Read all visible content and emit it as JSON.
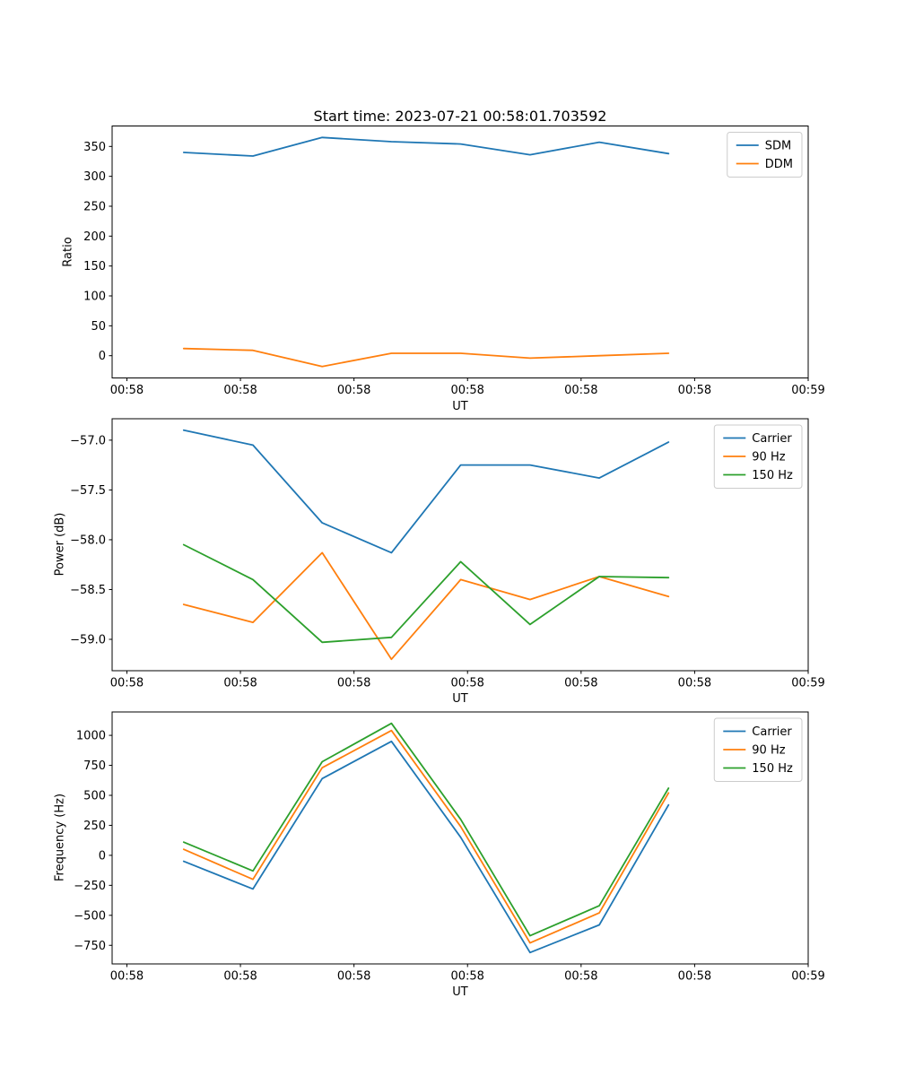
{
  "figure": {
    "background": "#ffffff",
    "text_color": "#000000",
    "spine_color": "#000000",
    "legend_border_color": "#cccccc"
  },
  "chart_data": [
    {
      "type": "line",
      "title": "Start time: 2023-07-21 00:58:01.703592",
      "xlabel": "UT",
      "ylabel": "Ratio",
      "grid": false,
      "legend_position": "upper right",
      "xlim": [
        -1.3,
        60.0
      ],
      "ylim": [
        -37.2,
        384.2
      ],
      "x": [
        5.0,
        11.1,
        17.2,
        23.3,
        29.4,
        35.5,
        41.6,
        47.7
      ],
      "x_ticks": [
        {
          "value": 0,
          "label": "00:58"
        },
        {
          "value": 10,
          "label": "00:58"
        },
        {
          "value": 20,
          "label": "00:58"
        },
        {
          "value": 30,
          "label": "00:58"
        },
        {
          "value": 40,
          "label": "00:58"
        },
        {
          "value": 50,
          "label": "00:58"
        },
        {
          "value": 60,
          "label": "00:59"
        }
      ],
      "y_ticks": [
        {
          "value": 0,
          "label": "0"
        },
        {
          "value": 50,
          "label": "50"
        },
        {
          "value": 100,
          "label": "100"
        },
        {
          "value": 150,
          "label": "150"
        },
        {
          "value": 200,
          "label": "200"
        },
        {
          "value": 250,
          "label": "250"
        },
        {
          "value": 300,
          "label": "300"
        },
        {
          "value": 350,
          "label": "350"
        }
      ],
      "series": [
        {
          "name": "SDM",
          "color": "#1f77b4",
          "values": [
            340,
            334,
            365,
            358,
            354,
            336,
            357,
            338
          ]
        },
        {
          "name": "DDM",
          "color": "#ff7f0e",
          "values": [
            12,
            9,
            -18,
            4,
            4,
            -4,
            0,
            4
          ]
        }
      ]
    },
    {
      "type": "line",
      "title": "",
      "xlabel": "UT",
      "ylabel": "Power (dB)",
      "grid": false,
      "legend_position": "upper right",
      "xlim": [
        -1.3,
        60.0
      ],
      "ylim": [
        -59.315,
        -56.785
      ],
      "x": [
        5.0,
        11.1,
        17.2,
        23.3,
        29.4,
        35.5,
        41.6,
        47.7
      ],
      "x_ticks": [
        {
          "value": 0,
          "label": "00:58"
        },
        {
          "value": 10,
          "label": "00:58"
        },
        {
          "value": 20,
          "label": "00:58"
        },
        {
          "value": 30,
          "label": "00:58"
        },
        {
          "value": 40,
          "label": "00:58"
        },
        {
          "value": 50,
          "label": "00:58"
        },
        {
          "value": 60,
          "label": "00:59"
        }
      ],
      "y_ticks": [
        {
          "value": -57.0,
          "label": "−57.0"
        },
        {
          "value": -57.5,
          "label": "−57.5"
        },
        {
          "value": -58.0,
          "label": "−58.0"
        },
        {
          "value": -58.5,
          "label": "−58.5"
        },
        {
          "value": -59.0,
          "label": "−59.0"
        }
      ],
      "series": [
        {
          "name": "Carrier",
          "color": "#1f77b4",
          "values": [
            -56.9,
            -57.05,
            -57.83,
            -58.13,
            -57.25,
            -57.25,
            -57.38,
            -57.02
          ]
        },
        {
          "name": "90 Hz",
          "color": "#ff7f0e",
          "values": [
            -58.65,
            -58.83,
            -58.13,
            -59.2,
            -58.4,
            -58.6,
            -58.37,
            -58.57
          ]
        },
        {
          "name": "150 Hz",
          "color": "#2ca02c",
          "values": [
            -58.05,
            -58.4,
            -59.03,
            -58.98,
            -58.22,
            -58.85,
            -58.37,
            -58.38
          ]
        }
      ]
    },
    {
      "type": "line",
      "title": "",
      "xlabel": "UT",
      "ylabel": "Frequency (Hz)",
      "grid": false,
      "legend_position": "upper right",
      "xlim": [
        -1.3,
        60.0
      ],
      "ylim": [
        -905,
        1195
      ],
      "x": [
        5.0,
        11.1,
        17.2,
        23.3,
        29.4,
        35.5,
        41.6,
        47.7
      ],
      "x_ticks": [
        {
          "value": 0,
          "label": "00:58"
        },
        {
          "value": 10,
          "label": "00:58"
        },
        {
          "value": 20,
          "label": "00:58"
        },
        {
          "value": 30,
          "label": "00:58"
        },
        {
          "value": 40,
          "label": "00:58"
        },
        {
          "value": 50,
          "label": "00:58"
        },
        {
          "value": 60,
          "label": "00:59"
        }
      ],
      "y_ticks": [
        {
          "value": -750,
          "label": "−750"
        },
        {
          "value": -500,
          "label": "−500"
        },
        {
          "value": -250,
          "label": "−250"
        },
        {
          "value": 0,
          "label": "0"
        },
        {
          "value": 250,
          "label": "250"
        },
        {
          "value": 500,
          "label": "500"
        },
        {
          "value": 750,
          "label": "750"
        },
        {
          "value": 1000,
          "label": "1000"
        }
      ],
      "series": [
        {
          "name": "Carrier",
          "color": "#1f77b4",
          "values": [
            -50,
            -280,
            640,
            950,
            150,
            -810,
            -580,
            420
          ]
        },
        {
          "name": "90 Hz",
          "color": "#ff7f0e",
          "values": [
            50,
            -200,
            730,
            1040,
            240,
            -730,
            -480,
            520
          ]
        },
        {
          "name": "150 Hz",
          "color": "#2ca02c",
          "values": [
            110,
            -130,
            780,
            1100,
            300,
            -670,
            -420,
            560
          ]
        }
      ]
    }
  ]
}
